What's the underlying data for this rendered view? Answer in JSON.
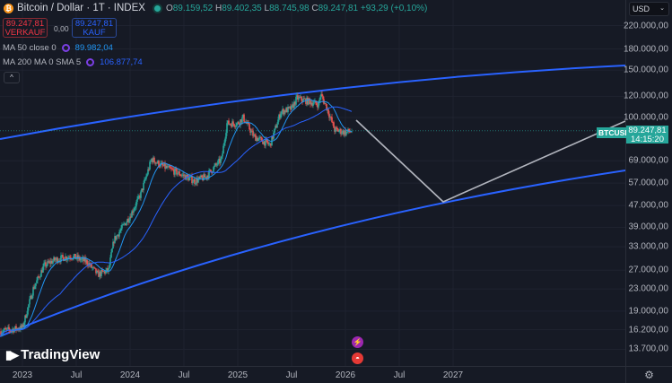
{
  "header": {
    "logo_glyph": "₿",
    "title": "Bitcoin / Dollar · 1T · INDEX",
    "ohlc": {
      "o_label": "O",
      "o": "89.159,52",
      "h_label": "H",
      "h": "89.402,35",
      "l_label": "L",
      "l": "88.745,98",
      "c_label": "C",
      "c": "89.247,81",
      "change": "+93,29 (+0,10%)"
    }
  },
  "trade": {
    "sell_price": "89.247,81",
    "sell_label": "VERKAUF",
    "spread": "0,00",
    "buy_price": "89.247,81",
    "buy_label": "KAUF"
  },
  "indicators": [
    {
      "label": "MA 50 close 0",
      "value": "89.982,04",
      "color": "#2196f3"
    },
    {
      "label": "MA 200 MA 0 SMA 5",
      "value": "106.877,74",
      "color": "#2962ff"
    }
  ],
  "collapse_glyph": "^",
  "currency": {
    "value": "USD",
    "chevron": "⌄"
  },
  "price_axis": [
    "220.000,00",
    "180.000,00",
    "150.000,00",
    "120.000,00",
    "100.000,00",
    "69.000,00",
    "57.000,00",
    "47.000,00",
    "39.000,00",
    "33.000,00",
    "27.000,00",
    "23.000,00",
    "19.000,00",
    "16.200,00",
    "13.700,00"
  ],
  "time_axis": [
    "2023",
    "Jul",
    "2024",
    "Jul",
    "2025",
    "Jul",
    "2026",
    "Jul",
    "2027"
  ],
  "last_price": {
    "symbol": "BTCUSD",
    "price": "89.247,81",
    "countdown": "14:15:20"
  },
  "brand": "TradingView",
  "settings_glyph": "⚙",
  "colors": {
    "up": "#26a69a",
    "down": "#ef5350",
    "channel": "#2962ff",
    "projection": "#b2b5be",
    "bg": "#161a25"
  }
}
